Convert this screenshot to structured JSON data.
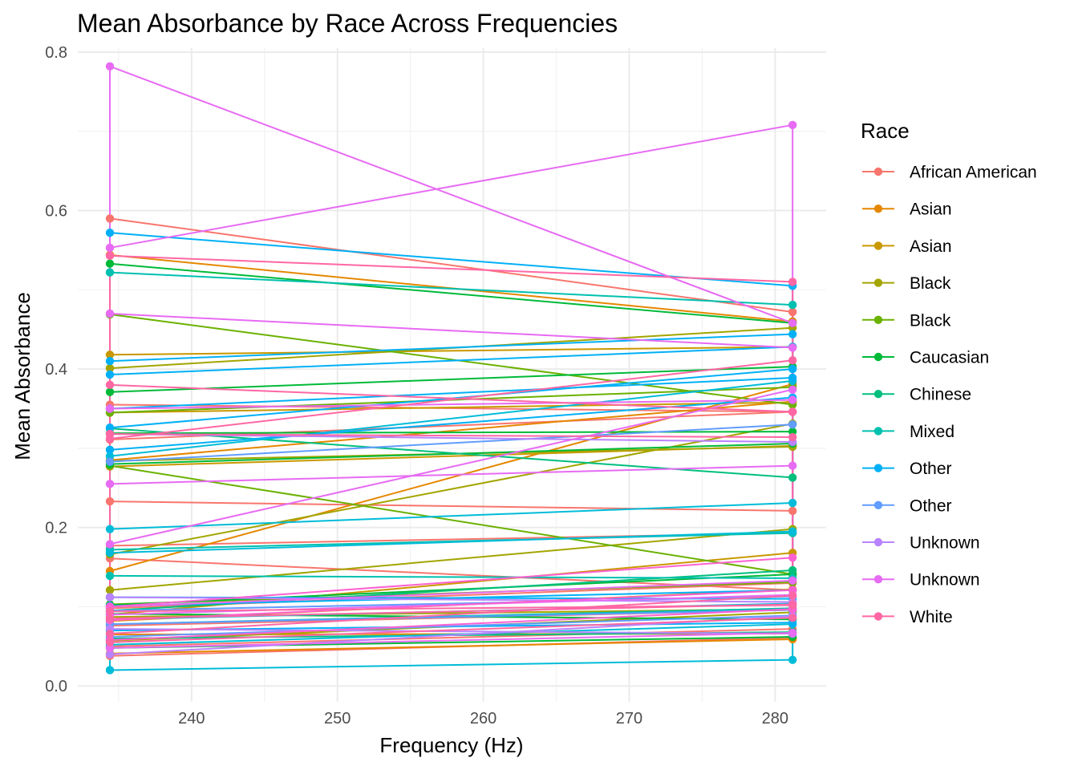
{
  "chart_data": {
    "type": "line",
    "title": "Mean Absorbance by Race Across Frequencies",
    "xlabel": "Frequency (Hz)",
    "ylabel": "Mean Absorbance",
    "xlim": [
      232.2,
      283.5
    ],
    "ylim": [
      -0.02,
      0.805
    ],
    "x_ticks": [
      240,
      250,
      260,
      270,
      280
    ],
    "y_ticks": [
      0.0,
      0.2,
      0.4,
      0.6,
      0.8
    ],
    "y_tick_labels": [
      "0.0",
      "0.2",
      "0.4",
      "0.6",
      "0.8"
    ],
    "grid": true,
    "legend_title": "Race",
    "legend_position": "right",
    "x_values": [
      234.4,
      281.2
    ],
    "groups": [
      {
        "name": "African American",
        "color": "#F8766D",
        "lines": [
          [
            0.59,
            0.472
          ],
          [
            0.233,
            0.221
          ],
          [
            0.161,
            0.121
          ],
          [
            0.177,
            0.193
          ],
          [
            0.05,
            0.072
          ],
          [
            0.038,
            0.061
          ],
          [
            0.098,
            0.13
          ],
          [
            0.311,
            0.346
          ],
          [
            0.076,
            0.096
          ],
          [
            0.355,
            0.346
          ]
        ]
      },
      {
        "name": "Asian",
        "color": "#E58700",
        "lines": [
          [
            0.145,
            0.381
          ],
          [
            0.544,
            0.46
          ],
          [
            0.082,
            0.122
          ],
          [
            0.065,
            0.066
          ],
          [
            0.041,
            0.059
          ],
          [
            0.285,
            0.359
          ]
        ]
      },
      {
        "name": "Asian",
        "color": "#C99800",
        "lines": [
          [
            0.418,
            0.428
          ],
          [
            0.345,
            0.358
          ],
          [
            0.09,
            0.168
          ],
          [
            0.277,
            0.303
          ]
        ]
      },
      {
        "name": "Black",
        "color": "#A3A500",
        "lines": [
          [
            0.401,
            0.452
          ],
          [
            0.166,
            0.331
          ],
          [
            0.121,
            0.198
          ],
          [
            0.284,
            0.302
          ],
          [
            0.087,
            0.097
          ],
          [
            0.057,
            0.093
          ]
        ]
      },
      {
        "name": "Black",
        "color": "#6BB100",
        "lines": [
          [
            0.278,
            0.141
          ],
          [
            0.469,
            0.355
          ],
          [
            0.345,
            0.377
          ],
          [
            0.103,
            0.131
          ]
        ]
      },
      {
        "name": "Caucasian",
        "color": "#00BA38",
        "lines": [
          [
            0.533,
            0.458
          ],
          [
            0.371,
            0.403
          ],
          [
            0.28,
            0.306
          ],
          [
            0.102,
            0.141
          ],
          [
            0.048,
            0.062
          ],
          [
            0.091,
            0.084
          ],
          [
            0.319,
            0.321
          ]
        ]
      },
      {
        "name": "Chinese",
        "color": "#00BF7D",
        "lines": [
          [
            0.325,
            0.263
          ],
          [
            0.095,
            0.146
          ],
          [
            0.06,
            0.068
          ]
        ]
      },
      {
        "name": "Mixed",
        "color": "#00C0AF",
        "lines": [
          [
            0.522,
            0.481
          ],
          [
            0.172,
            0.193
          ],
          [
            0.139,
            0.136
          ],
          [
            0.078,
            0.098
          ]
        ]
      },
      {
        "name": "Mixed",
        "color": "#00BCD8",
        "lines": [
          [
            0.198,
            0.231
          ],
          [
            0.02,
            0.033
          ],
          [
            0.168,
            0.195
          ],
          [
            0.29,
            0.385
          ],
          [
            0.052,
            0.078
          ],
          [
            0.084,
            0.104
          ]
        ]
      },
      {
        "name": "Other",
        "color": "#00B0F6",
        "lines": [
          [
            0.572,
            0.505
          ],
          [
            0.41,
            0.444
          ],
          [
            0.35,
            0.389
          ],
          [
            0.326,
            0.4
          ],
          [
            0.393,
            0.428
          ],
          [
            0.298,
            0.364
          ],
          [
            0.112,
            0.11
          ],
          [
            0.07,
            0.08
          ],
          [
            0.101,
            0.121
          ]
        ]
      },
      {
        "name": "Other",
        "color": "#619CFF",
        "lines": [
          [
            0.283,
            0.33
          ],
          [
            0.095,
            0.113
          ],
          [
            0.078,
            0.096
          ],
          [
            0.062,
            0.089
          ]
        ]
      },
      {
        "name": "Unknown",
        "color": "#B983FF",
        "lines": [
          [
            0.04,
            0.088
          ],
          [
            0.318,
            0.308
          ],
          [
            0.112,
            0.106
          ],
          [
            0.072,
            0.066
          ]
        ]
      },
      {
        "name": "Unknown",
        "color": "#E76BF3",
        "lines": [
          [
            0.782,
            0.458
          ],
          [
            0.47,
            0.427
          ],
          [
            0.255,
            0.278
          ],
          [
            0.179,
            0.374
          ],
          [
            0.09,
            0.115
          ],
          [
            0.048,
            0.067
          ],
          [
            0.1,
            0.133
          ],
          [
            0.35,
            0.361
          ],
          [
            0.553,
            0.708
          ]
        ]
      },
      {
        "name": "Unknown",
        "color": "#FD61D1",
        "lines": [
          [
            0.1,
            0.162
          ],
          [
            0.083,
            0.121
          ],
          [
            0.058,
            0.097
          ]
        ]
      },
      {
        "name": "White",
        "color": "#FF67A4",
        "lines": [
          [
            0.543,
            0.51
          ],
          [
            0.38,
            0.346
          ],
          [
            0.312,
            0.411
          ],
          [
            0.318,
            0.314
          ],
          [
            0.094,
            0.102
          ],
          [
            0.085,
            0.103
          ],
          [
            0.066,
            0.114
          ],
          [
            0.055,
            0.086
          ]
        ]
      }
    ],
    "legend": [
      {
        "label": "African American",
        "color": "#F8766D"
      },
      {
        "label": "Asian",
        "color": "#E58700"
      },
      {
        "label": "Asian",
        "color": "#C99800"
      },
      {
        "label": "Black",
        "color": "#A3A500"
      },
      {
        "label": "Black",
        "color": "#6BB100"
      },
      {
        "label": "Caucasian",
        "color": "#00BA38"
      },
      {
        "label": "Chinese",
        "color": "#00BF7D"
      },
      {
        "label": "Mixed",
        "color": "#00C0AF"
      },
      {
        "label": "Other",
        "color": "#00B0F6"
      },
      {
        "label": "Other",
        "color": "#619CFF"
      },
      {
        "label": "Unknown",
        "color": "#B983FF"
      },
      {
        "label": "Unknown",
        "color": "#E76BF3"
      },
      {
        "label": "White",
        "color": "#FF67A4"
      }
    ]
  }
}
